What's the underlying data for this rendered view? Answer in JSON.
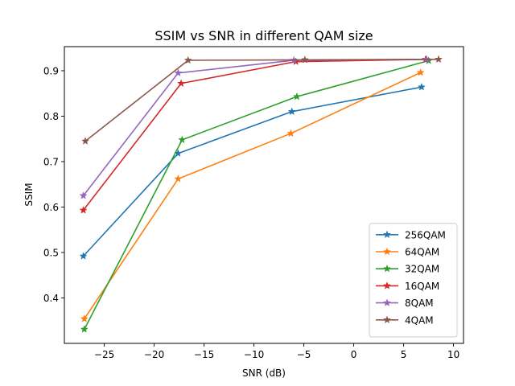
{
  "chart_data": {
    "type": "line",
    "title": "SSIM vs SNR in different QAM size",
    "xlabel": "SNR (dB)",
    "ylabel": "SSIM",
    "xlim": [
      -29,
      11
    ],
    "ylim": [
      0.3,
      0.953
    ],
    "xticks": [
      -25,
      -20,
      -15,
      -10,
      -5,
      0,
      5,
      10
    ],
    "xtick_labels": [
      "−25",
      "−20",
      "−15",
      "−10",
      "−5",
      "0",
      "5",
      "10"
    ],
    "yticks": [
      0.4,
      0.5,
      0.6,
      0.7,
      0.8,
      0.9
    ],
    "ytick_labels": [
      "0.4",
      "0.5",
      "0.6",
      "0.7",
      "0.8",
      "0.9"
    ],
    "grid": false,
    "legend_position": "lower-right",
    "marker": "star",
    "series": [
      {
        "name": "256QAM",
        "color": "#1f77b4",
        "x": [
          -27.1,
          -17.6,
          -6.2,
          6.8
        ],
        "y": [
          0.492,
          0.718,
          0.81,
          0.864
        ]
      },
      {
        "name": "64QAM",
        "color": "#ff7f0e",
        "x": [
          -27.0,
          -17.6,
          -6.3,
          6.7
        ],
        "y": [
          0.354,
          0.662,
          0.762,
          0.896
        ]
      },
      {
        "name": "32QAM",
        "color": "#2ca02c",
        "x": [
          -27.0,
          -17.2,
          -5.7,
          7.5
        ],
        "y": [
          0.331,
          0.748,
          0.843,
          0.922
        ]
      },
      {
        "name": "16QAM",
        "color": "#d62728",
        "x": [
          -27.1,
          -17.3,
          -5.8,
          7.2
        ],
        "y": [
          0.593,
          0.872,
          0.92,
          0.925
        ]
      },
      {
        "name": "8QAM",
        "color": "#9467bd",
        "x": [
          -27.1,
          -17.6,
          -6.0,
          7.3
        ],
        "y": [
          0.625,
          0.895,
          0.923,
          0.925
        ]
      },
      {
        "name": "4QAM",
        "color": "#8c564b",
        "x": [
          -26.9,
          -16.6,
          -4.9,
          8.5
        ],
        "y": [
          0.745,
          0.923,
          0.924,
          0.925
        ]
      }
    ]
  }
}
